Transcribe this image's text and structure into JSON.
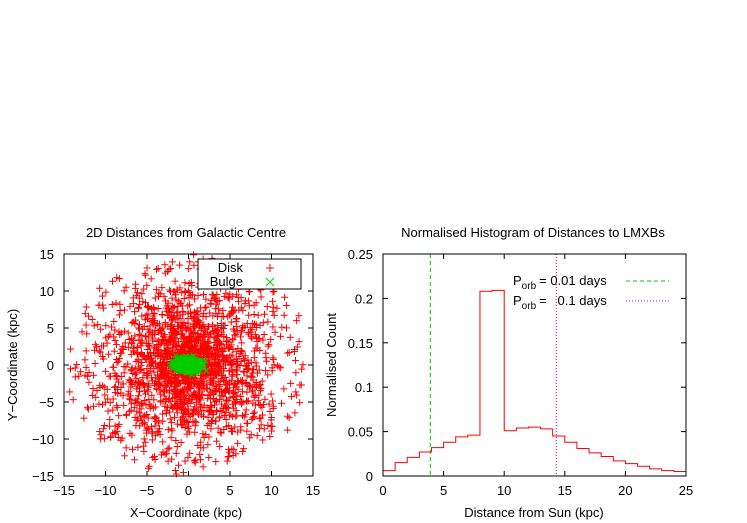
{
  "chart_data": [
    {
      "type": "scatter",
      "title": "2D Distances from Galactic Centre",
      "xlabel": "X−Coordinate (kpc)",
      "ylabel": "Y−Coordinate (kpc)",
      "xlim": [
        -15,
        15
      ],
      "ylim": [
        -15,
        15
      ],
      "xticks": [
        -15,
        -10,
        -5,
        0,
        5,
        10,
        15
      ],
      "yticks": [
        -15,
        -10,
        -5,
        0,
        5,
        10,
        15
      ],
      "xtick_labels": [
        "−15",
        "−10",
        "−5",
        "0",
        "5",
        "10",
        "15"
      ],
      "ytick_labels": [
        "−15",
        "−10",
        "−5",
        "0",
        "5",
        "10",
        "15"
      ],
      "grid": false,
      "legend_position": "top-right",
      "series": [
        {
          "name": "Disk",
          "marker": "+",
          "color": "#ff0000",
          "count": 2000,
          "distribution": "exponential disk, scale length ~4 kpc, truncated at 15 kpc"
        },
        {
          "name": "Bulge",
          "marker": "x",
          "color": "#00cc00",
          "count": 600,
          "distribution": "compact, radius ~1.5 kpc, slightly elongated in x"
        }
      ]
    },
    {
      "type": "step",
      "title": "Normalised Histogram of Distances to LMXBs",
      "xlabel": "Distance from Sun (kpc)",
      "ylabel": "Normalised Count",
      "xlim": [
        0,
        25
      ],
      "ylim": [
        0,
        0.25
      ],
      "xticks": [
        0,
        5,
        10,
        15,
        20,
        25
      ],
      "yticks": [
        0,
        0.05,
        0.1,
        0.15,
        0.2,
        0.25
      ],
      "xtick_labels": [
        "0",
        "5",
        "10",
        "15",
        "20",
        "25"
      ],
      "ytick_labels": [
        "0",
        "0.05",
        "0.1",
        "0.15",
        "0.2",
        "0.25"
      ],
      "grid": false,
      "legend_position": "top-right",
      "bin_width": 1,
      "bin_edges_start": 0,
      "values": [
        0.006,
        0.015,
        0.021,
        0.027,
        0.032,
        0.038,
        0.044,
        0.046,
        0.208,
        0.209,
        0.051,
        0.054,
        0.055,
        0.053,
        0.045,
        0.038,
        0.031,
        0.026,
        0.022,
        0.017,
        0.014,
        0.011,
        0.008,
        0.006,
        0.005
      ],
      "color": "#ff0000",
      "vlines": [
        {
          "label_main": "P",
          "label_sub": "orb",
          "label_rest": "= 0.01 days",
          "x": 3.9,
          "color": "#00cc00",
          "dash": "dashed"
        },
        {
          "label_main": "P",
          "label_sub": "orb",
          "label_rest": "=   0.1 days",
          "x": 14.3,
          "color": "#cc00cc",
          "dash": "dotted"
        }
      ]
    }
  ]
}
